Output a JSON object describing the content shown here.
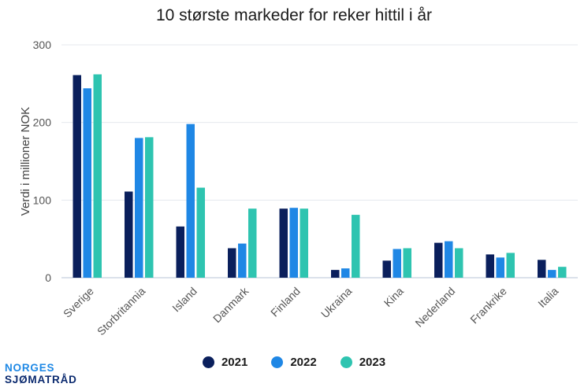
{
  "chart_data": {
    "type": "bar",
    "title": "10 største markeder for reker hittil i år",
    "xlabel": "",
    "ylabel": "Verdi i millioner NOK",
    "ylim": [
      0,
      300
    ],
    "yticks": [
      0,
      100,
      200,
      300
    ],
    "grid": true,
    "legend_position": "bottom",
    "categories": [
      "Sverige",
      "Storbritannia",
      "Island",
      "Danmark",
      "Finland",
      "Ukraina",
      "Kina",
      "Nederland",
      "Frankrike",
      "Italia"
    ],
    "series": [
      {
        "name": "2021",
        "color": "#0a1f5c",
        "values": [
          261,
          111,
          66,
          38,
          89,
          10,
          22,
          45,
          30,
          23
        ]
      },
      {
        "name": "2022",
        "color": "#1f87e5",
        "values": [
          244,
          180,
          198,
          44,
          90,
          12,
          37,
          47,
          26,
          10
        ]
      },
      {
        "name": "2023",
        "color": "#2ec4b0",
        "values": [
          262,
          181,
          116,
          89,
          89,
          81,
          38,
          38,
          32,
          14
        ]
      }
    ]
  },
  "branding": {
    "line1": "NORGES",
    "line2": "SJØMATRÅD"
  }
}
